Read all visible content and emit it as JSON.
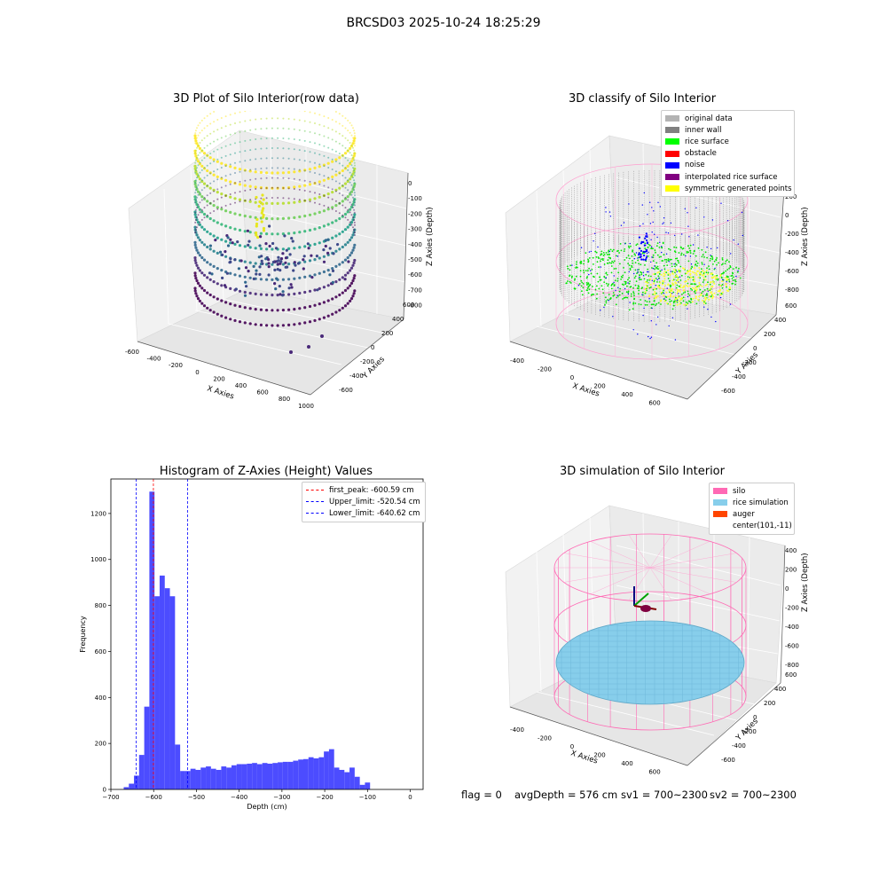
{
  "figure": {
    "suptitle": "BRCSD03 2025-10-24 18:25:29",
    "status": {
      "flag": "flag = 0",
      "avgDepth": "avgDepth = 576 cm",
      "sv1": "sv1 = 700~2300",
      "sv2": "sv2 = 700~2300"
    }
  },
  "chart_data": [
    {
      "type": "scatter",
      "panel": "raw",
      "title": "3D Plot of Silo Interior(row data)",
      "xlabel": "X Axies",
      "ylabel": "Y Axies",
      "zlabel": "Z Axies (Depth)",
      "x_ticks": [
        "-600",
        "-400",
        "-200",
        "0",
        "200",
        "400",
        "600",
        "800",
        "1000"
      ],
      "y_ticks": [
        "-600",
        "-400",
        "-200",
        "0",
        "200",
        "400",
        "600"
      ],
      "z_ticks": [
        "0",
        "-100",
        "-200",
        "-300",
        "-400",
        "-500",
        "-600",
        "-700",
        "-800"
      ],
      "colormap": "viridis",
      "description_data": {
        "wall_radius": 420,
        "z_range": [
          -850,
          -50
        ],
        "surface_depth": -600
      }
    },
    {
      "type": "scatter",
      "panel": "classified",
      "title": "3D classify of Silo Interior",
      "xlabel": "X Axies",
      "ylabel": "Y Axies",
      "zlabel": "Z Axies (Depth)",
      "x_ticks": [
        "-400",
        "-200",
        "0",
        "200",
        "400",
        "600"
      ],
      "y_ticks": [
        "-600",
        "-400",
        "-200",
        "0",
        "200",
        "400",
        "600"
      ],
      "z_ticks": [
        "200",
        "0",
        "-200",
        "-400",
        "-600",
        "-800"
      ],
      "legend": [
        {
          "label": "original data",
          "color": "#b3b3b3"
        },
        {
          "label": "inner wall",
          "color": "#808080"
        },
        {
          "label": "rice surface",
          "color": "#00ff00"
        },
        {
          "label": "obstacle",
          "color": "#ff0000"
        },
        {
          "label": "noise",
          "color": "#0000ff"
        },
        {
          "label": "interpolated rice surface",
          "color": "#800080"
        },
        {
          "label": "symmetric generated points",
          "color": "#ffff00"
        }
      ]
    },
    {
      "type": "bar",
      "panel": "histogram",
      "title": "Histogram of Z-Axies (Height) Values",
      "xlabel": "Depth (cm)",
      "ylabel": "Frequency",
      "xlim": [
        -700,
        30
      ],
      "ylim": [
        0,
        1350
      ],
      "x_ticks": [
        "−700",
        "−600",
        "−500",
        "−400",
        "−300",
        "−200",
        "−100",
        "0"
      ],
      "y_ticks": [
        "0",
        "200",
        "400",
        "600",
        "800",
        "1000",
        "1200"
      ],
      "bar_color": "#4848ff",
      "bin_width": 12,
      "bin_start": -670,
      "values": [
        10,
        25,
        60,
        150,
        360,
        1295,
        840,
        930,
        875,
        840,
        195,
        80,
        80,
        90,
        85,
        95,
        100,
        90,
        85,
        100,
        95,
        105,
        110,
        110,
        112,
        115,
        110,
        115,
        112,
        115,
        118,
        120,
        120,
        125,
        130,
        132,
        140,
        135,
        140,
        165,
        175,
        95,
        85,
        75,
        95,
        55,
        20,
        30
      ],
      "vlines": [
        {
          "label": "first_peak: -600.59 cm",
          "x": -600.59,
          "color": "#ff0000"
        },
        {
          "label": "Upper_limit: -520.54 cm",
          "x": -520.54,
          "color": "#0000ff"
        },
        {
          "label": "Lower_limit: -640.62 cm",
          "x": -640.62,
          "color": "#0000ff"
        }
      ]
    },
    {
      "type": "area",
      "panel": "simulation",
      "title": "3D simulation of Silo Interior",
      "xlabel": "X Axies",
      "ylabel": "Y Axies",
      "zlabel": "Z Axies (Depth)",
      "x_ticks": [
        "-400",
        "-200",
        "0",
        "200",
        "400",
        "600"
      ],
      "y_ticks": [
        "-600",
        "-400",
        "-200",
        "0",
        "200",
        "400",
        "600"
      ],
      "z_ticks": [
        "400",
        "200",
        "0",
        "-200",
        "-400",
        "-600",
        "-800"
      ],
      "legend": [
        {
          "label": "silo",
          "color": "#ff69b4"
        },
        {
          "label": "rice simulation",
          "color": "#87ceeb"
        },
        {
          "label": "auger",
          "color": "#ff4500"
        },
        {
          "label": "center(101,-11)",
          "color": "none"
        }
      ]
    }
  ]
}
